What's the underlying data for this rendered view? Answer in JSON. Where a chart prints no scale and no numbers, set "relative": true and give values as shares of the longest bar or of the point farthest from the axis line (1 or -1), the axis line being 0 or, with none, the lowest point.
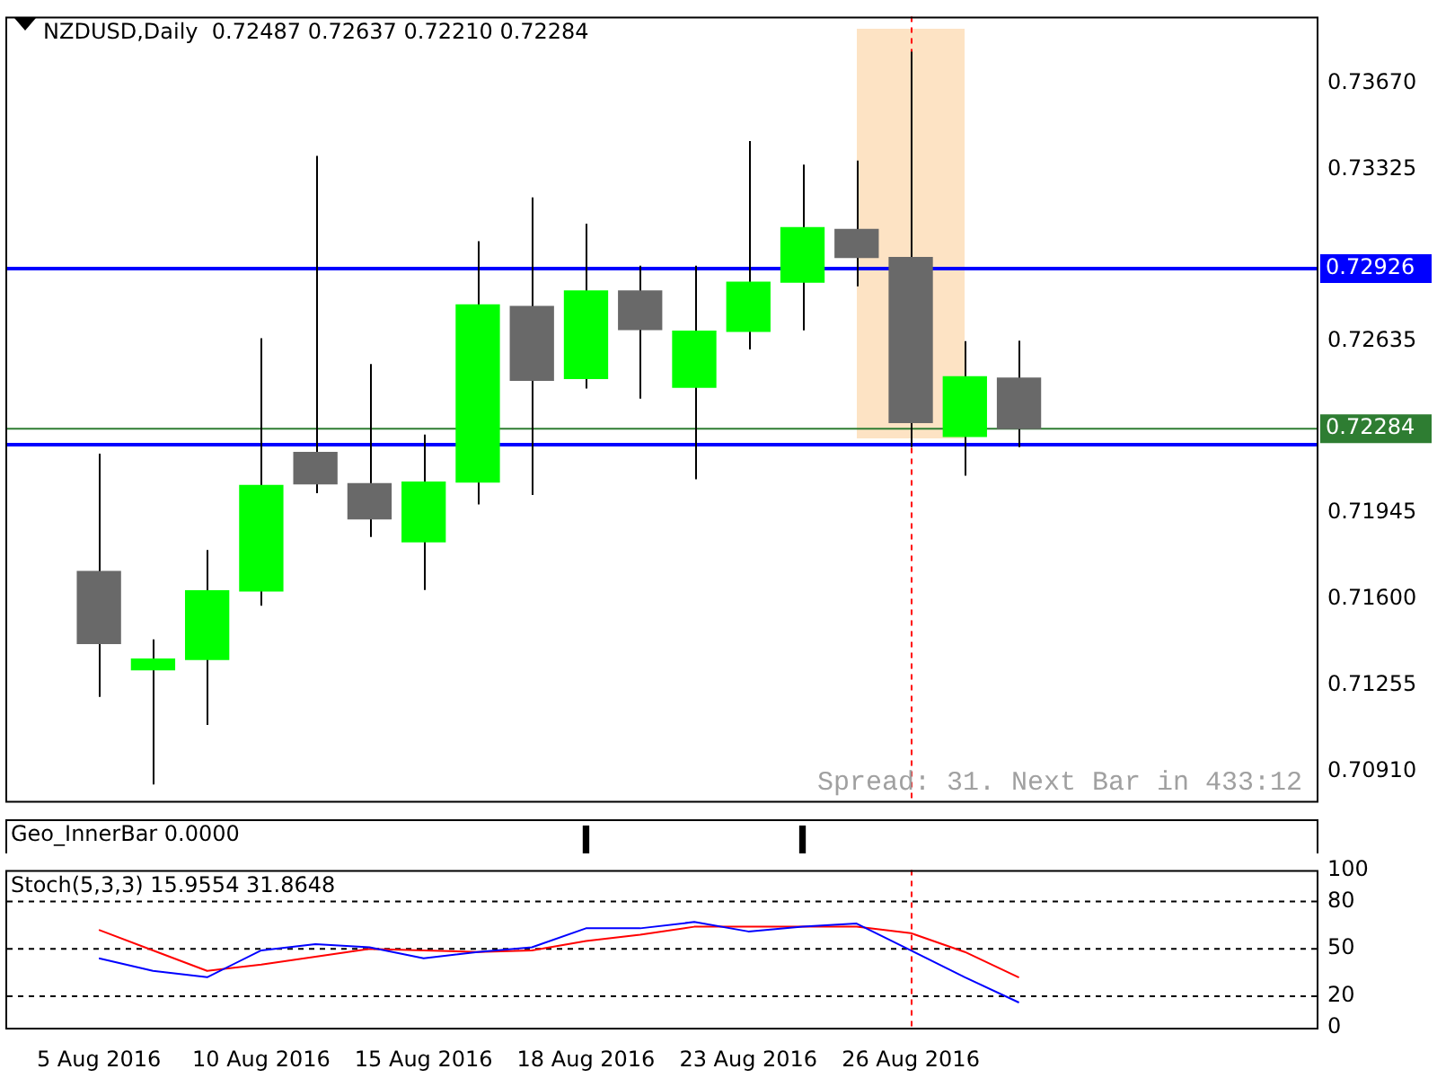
{
  "chart_data": [
    {
      "type": "candlestick",
      "title": "NZDUSD,Daily  0.72487 0.72637 0.72210 0.72284",
      "categories": [
        "5 Aug 2016",
        null,
        null,
        "10 Aug 2016",
        null,
        null,
        "15 Aug 2016",
        null,
        null,
        "18 Aug 2016",
        null,
        null,
        "23 Aug 2016",
        null,
        null,
        "26 Aug 2016",
        null,
        null,
        null,
        null,
        null,
        null,
        null
      ],
      "ohlc": [
        [
          0.71711,
          0.72184,
          0.71208,
          0.71422
        ],
        [
          0.71316,
          0.71438,
          0.70856,
          0.71359
        ],
        [
          0.71358,
          0.71797,
          0.71095,
          0.71633
        ],
        [
          0.71633,
          0.72647,
          0.71574,
          0.72056
        ],
        [
          0.72189,
          0.73379,
          0.72025,
          0.72063
        ],
        [
          0.72063,
          0.72543,
          0.71849,
          0.71922
        ],
        [
          0.7183,
          0.7226,
          0.71637,
          0.7207
        ],
        [
          0.7207,
          0.73036,
          0.7198,
          0.72781
        ],
        [
          0.72774,
          0.73212,
          0.72018,
          0.72478
        ],
        [
          0.72485,
          0.73107,
          0.72445,
          0.72837
        ],
        [
          0.72837,
          0.72938,
          0.72405,
          0.72682
        ],
        [
          0.7245,
          0.72938,
          0.72081,
          0.72675
        ],
        [
          0.72675,
          0.73438,
          0.72602,
          0.72872
        ],
        [
          0.72872,
          0.73344,
          0.72679,
          0.73091
        ],
        [
          0.73084,
          0.7336,
          0.72855,
          0.72971
        ],
        [
          0.72971,
          0.73797,
          0.7221,
          0.72309
        ],
        [
          0.72253,
          0.72635,
          0.72095,
          0.72492
        ],
        [
          0.72487,
          0.72637,
          0.7221,
          0.72284
        ],
        null,
        null,
        null,
        null,
        null
      ],
      "colors": [
        "#696969",
        "#00ff00",
        "#00ff00",
        "#00ff00",
        "#696969",
        "#696969",
        "#00ff00",
        "#00ff00",
        "#696969",
        "#00ff00",
        "#696969",
        "#00ff00",
        "#00ff00",
        "#00ff00",
        "#696969",
        "#696969",
        "#00ff00",
        "#696969",
        null,
        null,
        null,
        null,
        null
      ],
      "ylim": [
        0.7079,
        0.73938
      ],
      "yticks": [
        {
          "value": 0.7367,
          "label": "0.73670"
        },
        {
          "value": 0.73325,
          "label": "0.73325"
        },
        {
          "value": 0.72635,
          "label": "0.72635"
        },
        {
          "value": 0.71945,
          "label": "0.71945"
        },
        {
          "value": 0.716,
          "label": "0.71600"
        },
        {
          "value": 0.71255,
          "label": "0.71255"
        },
        {
          "value": 0.7091,
          "label": "0.70910"
        }
      ],
      "tick_labels": "y",
      "ref_lines": [
        {
          "axis": "y",
          "value": 0.72926,
          "label": "0.72926",
          "color": "#0000ff"
        },
        {
          "axis": "y",
          "value": 0.7222,
          "label": null,
          "color": "#0000ff"
        },
        {
          "axis": "y",
          "value": 0.72284,
          "label": "0.72284",
          "color": "#2e7d32"
        },
        {
          "axis": "x",
          "value": "26 Aug 2016",
          "label": null,
          "color": "#ff0000",
          "line_style": "dashed"
        }
      ],
      "annotations": [
        "Spread: 31. Next Bar in 433:12"
      ]
    },
    {
      "type": "bar",
      "title": "Geo_InnerBar 0.0000",
      "categories": [
        null,
        null,
        null,
        null,
        null,
        null,
        null,
        null,
        null,
        null,
        null,
        null,
        null,
        null,
        null,
        null,
        null,
        null,
        null,
        null,
        null,
        null,
        null
      ],
      "values": [
        null,
        null,
        null,
        null,
        null,
        null,
        null,
        null,
        null,
        1,
        null,
        null,
        null,
        1,
        null,
        null,
        null,
        null,
        null,
        null,
        null,
        null,
        null
      ],
      "color": "#000000",
      "relative": true,
      "tick_labels": false
    },
    {
      "type": "line",
      "title": "Stoch(5,3,3) 15.9554 31.8648",
      "categories": [
        "5 Aug 2016",
        null,
        null,
        "10 Aug 2016",
        null,
        null,
        "15 Aug 2016",
        null,
        null,
        "18 Aug 2016",
        null,
        null,
        "23 Aug 2016",
        null,
        null,
        "26 Aug 2016",
        null,
        null,
        null,
        null,
        null,
        null,
        null
      ],
      "series": [
        {
          "color": "#0000ff",
          "values": [
            44,
            36,
            32,
            49,
            53,
            51,
            44,
            48,
            51,
            63,
            63,
            67,
            61,
            64,
            66,
            49,
            32,
            15.9554,
            null,
            null,
            null,
            null,
            null
          ]
        },
        {
          "color": "#ff0000",
          "values": [
            62,
            49,
            36,
            40,
            45,
            50,
            49,
            48,
            49,
            55,
            59,
            64,
            64,
            64,
            64,
            60,
            48,
            31.8648,
            null,
            null,
            null,
            null,
            null
          ]
        }
      ],
      "ylim": [
        0,
        100
      ],
      "yticks": [
        0,
        20,
        50,
        80,
        100
      ],
      "ref_lines": [
        {
          "axis": "y",
          "value": 20,
          "label": null,
          "color": "#000000",
          "line_style": "dashed"
        },
        {
          "axis": "y",
          "value": 50,
          "label": null,
          "color": "#000000",
          "line_style": "dashed"
        },
        {
          "axis": "y",
          "value": 80,
          "label": null,
          "color": "#000000",
          "line_style": "dashed"
        },
        {
          "axis": "x",
          "value": "26 Aug 2016",
          "label": null,
          "color": "#ff0000",
          "line_style": "dashed"
        }
      ]
    }
  ]
}
